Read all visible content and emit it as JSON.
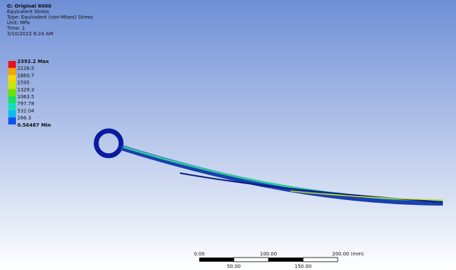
{
  "header": {
    "lines": [
      "G: Original 6000",
      "Equivalent Stress",
      "Type: Equivalent (von-Mises) Stress",
      "Unit: MPa",
      "Time: 1",
      "3/10/2022 6:24 AM"
    ]
  },
  "legend": {
    "labels": [
      "2392.2 Max",
      "2126.5",
      "1860.7",
      "1595",
      "1329.3",
      "1063.5",
      "797.78",
      "532.04",
      "266.3",
      "0.56487 Min"
    ],
    "colors": [
      "#e8141a",
      "#f5a300",
      "#f0d800",
      "#c8e800",
      "#6fe000",
      "#18e060",
      "#10e0c0",
      "#10b8f0",
      "#1050f0"
    ]
  },
  "scale_bar": {
    "top_labels": [
      "0.00",
      "100.00",
      "200.00 (mm)"
    ],
    "bottom_labels": [
      "50.00",
      "150.00"
    ]
  }
}
